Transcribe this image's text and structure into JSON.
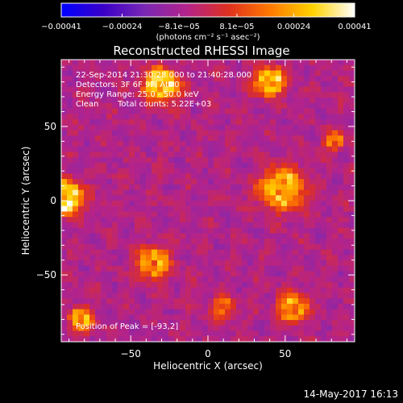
{
  "chart_data": {
    "type": "heatmap",
    "title": "Reconstructed RHESSI Image",
    "xlabel": "Heliocentric X (arcsec)",
    "ylabel": "Heliocentric Y (arcsec)",
    "xlim": [
      -95,
      95
    ],
    "ylim": [
      -95,
      95
    ],
    "xticks": [
      {
        "value": -50,
        "label": "−50"
      },
      {
        "value": 0,
        "label": "0"
      },
      {
        "value": 50,
        "label": "50"
      }
    ],
    "yticks": [
      {
        "value": 50,
        "label": "50"
      },
      {
        "value": 0,
        "label": "0"
      },
      {
        "value": -50,
        "label": "−50"
      }
    ],
    "colorbar": {
      "min": -0.00041,
      "max": 0.00041,
      "ticks": [
        {
          "value": -0.00041,
          "label": "−0.00041"
        },
        {
          "value": -0.00024,
          "label": "−0.00024"
        },
        {
          "value": -8.1e-05,
          "label": "−8.1e−05"
        },
        {
          "value": 8.1e-05,
          "label": "8.1e−05"
        },
        {
          "value": 0.00024,
          "label": "0.00024"
        },
        {
          "value": 0.00041,
          "label": "0.00041"
        }
      ],
      "unit_label": "(photons cm⁻² s⁻¹ asec⁻²)",
      "colors": [
        "#0000ff",
        "#3a00c8",
        "#7a28b4",
        "#b4238a",
        "#e0301e",
        "#ff7a00",
        "#ffd200",
        "#ffffff"
      ]
    },
    "annotations": {
      "time_range": "22-Sep-2014 21:30:28.000 to 21:40:28.000",
      "detectors": "Detectors: 3F 6F 9F, Att 0",
      "energy_range": "Energy Range: 25.0 - 50.0 keV",
      "algorithm": "Clean",
      "total_counts": "Total counts: 5.22E+03",
      "peak_position": "Position of Peak = [-93,2]"
    },
    "peak": [
      -93,
      2
    ],
    "bright_sources": [
      {
        "x": -93,
        "y": 2,
        "radius": 14,
        "intensity": 0.00041
      },
      {
        "x": -30,
        "y": 78,
        "radius": 14,
        "intensity": 0.00034
      },
      {
        "x": 40,
        "y": 80,
        "radius": 12,
        "intensity": 0.0003
      },
      {
        "x": 48,
        "y": 8,
        "radius": 18,
        "intensity": 0.0003
      },
      {
        "x": -35,
        "y": -42,
        "radius": 13,
        "intensity": 0.0003
      },
      {
        "x": -82,
        "y": -80,
        "radius": 10,
        "intensity": 0.00026
      },
      {
        "x": 55,
        "y": -72,
        "radius": 12,
        "intensity": 0.00026
      },
      {
        "x": 82,
        "y": 40,
        "radius": 8,
        "intensity": 0.00022
      },
      {
        "x": 10,
        "y": -72,
        "radius": 9,
        "intensity": 0.0002
      }
    ],
    "grid": false
  },
  "footer": {
    "timestamp": "14-May-2017 16:13"
  }
}
